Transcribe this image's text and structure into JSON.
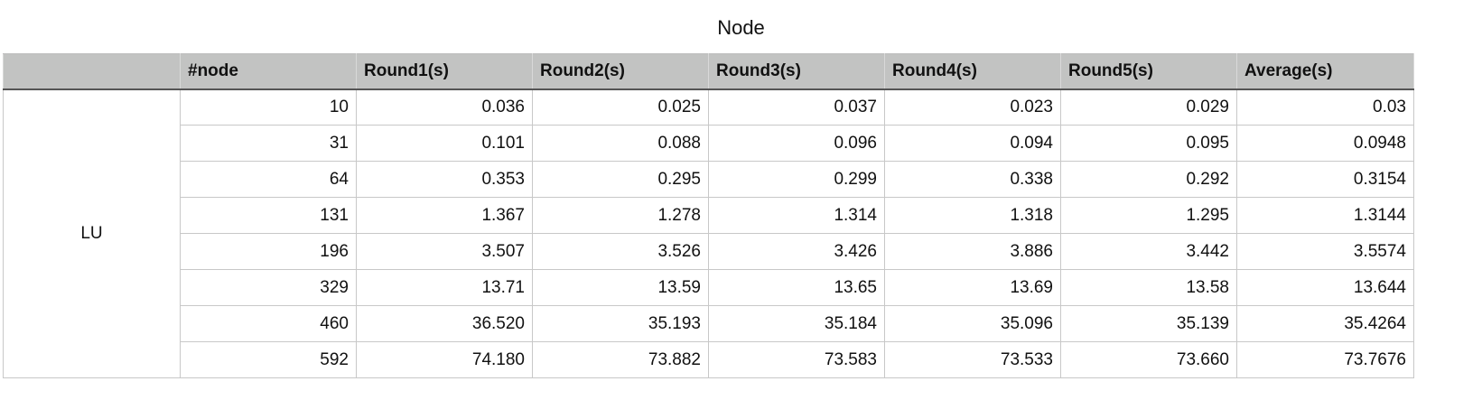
{
  "title": "Node",
  "table": {
    "columns": [
      "",
      "#node",
      "Round1(s)",
      "Round2(s)",
      "Round3(s)",
      "Round4(s)",
      "Round5(s)",
      "Average(s)"
    ],
    "group_label": "LU",
    "rows": [
      [
        "10",
        "0.036",
        "0.025",
        "0.037",
        "0.023",
        "0.029",
        "0.03"
      ],
      [
        "31",
        "0.101",
        "0.088",
        "0.096",
        "0.094",
        "0.095",
        "0.0948"
      ],
      [
        "64",
        "0.353",
        "0.295",
        "0.299",
        "0.338",
        "0.292",
        "0.3154"
      ],
      [
        "131",
        "1.367",
        "1.278",
        "1.314",
        "1.318",
        "1.295",
        "1.3144"
      ],
      [
        "196",
        "3.507",
        "3.526",
        "3.426",
        "3.886",
        "3.442",
        "3.5574"
      ],
      [
        "329",
        "13.71",
        "13.59",
        "13.65",
        "13.69",
        "13.58",
        "13.644"
      ],
      [
        "460",
        "36.520",
        "35.193",
        "35.184",
        "35.096",
        "35.139",
        "35.4264"
      ],
      [
        "592",
        "74.180",
        "73.882",
        "73.583",
        "73.533",
        "73.660",
        "73.7676"
      ]
    ]
  }
}
